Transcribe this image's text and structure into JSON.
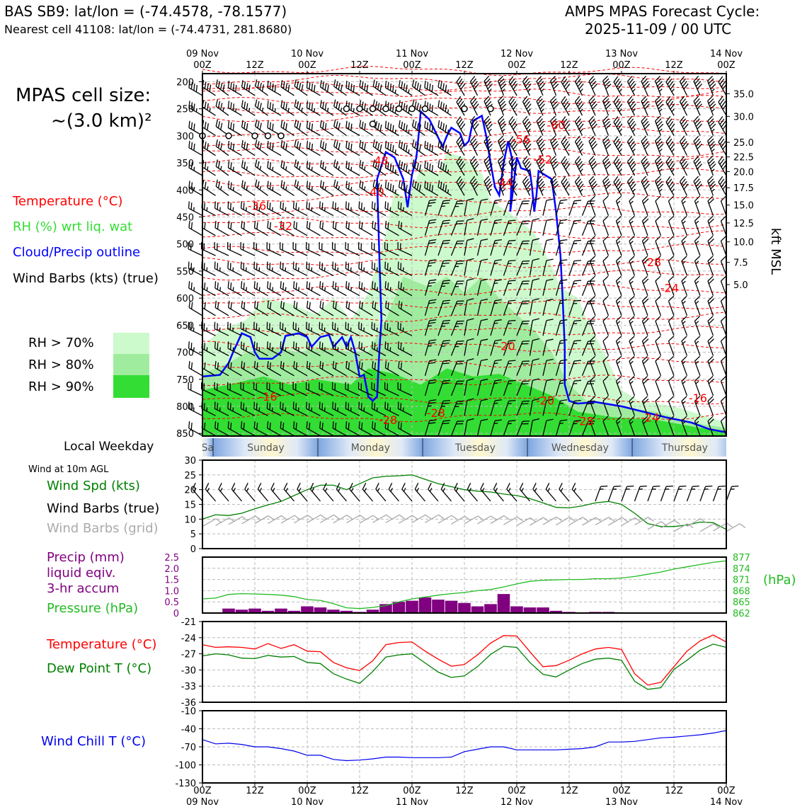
{
  "header": {
    "station": "BAS SB9: lat/lon = (-74.4578, -78.1577)",
    "nearest_cell": "Nearest cell 41108: lat/lon = (-74.4731, 281.8680)",
    "forecast_label": "AMPS MPAS Forecast Cycle:",
    "cycle": "2025-11-09 / 00 UTC"
  },
  "sidebar": {
    "cell_size_label": "MPAS cell size:",
    "cell_size_value": "~(3.0 km)²",
    "legend": {
      "temperature": "Temperature (°C)",
      "rh": "RH (%) wrt liq. wat",
      "cloud": "Cloud/Precip outline",
      "wind": "Wind Barbs (kts) (true)"
    },
    "rh_key": [
      {
        "label": "RH > 70%",
        "color": "#ccfacc"
      },
      {
        "label": "RH > 80%",
        "color": "#9fec9f"
      },
      {
        "label": "RH > 90%",
        "color": "#33dd33"
      }
    ],
    "weekday_label": "Local Weekday",
    "wind10m_label": "Wind at 10m AGL",
    "wind_spd_label": "Wind Spd (kts)",
    "wind_barbs_true": "Wind Barbs (true)",
    "wind_barbs_grid": "Wind Barbs (grid)",
    "precip_label": "Precip (mm)",
    "precip_sub1": "liquid eqiv.",
    "precip_sub2": "3-hr accum",
    "pressure_label": "Pressure (hPa)",
    "pressure_unit": "(hPa)",
    "temp_label": "Temperature (°C)",
    "dew_label": "Dew Point T (°C)",
    "windchill_label": "Wind Chill T (°C)"
  },
  "colors": {
    "temperature": "#ff0000",
    "rh_text": "#33dd33",
    "cloud": "#0000ff",
    "wind_speed": "#008000",
    "grid_barbs": "#aaaaaa",
    "precip": "#800080",
    "pressure": "#22bb22",
    "dewpoint": "#008000",
    "windchill": "#0000ee"
  },
  "time_axis": {
    "ticks": [
      {
        "hour": 0,
        "top": "09 Nov",
        "bottom": "00Z"
      },
      {
        "hour": 12,
        "top": "",
        "bottom": "12Z"
      },
      {
        "hour": 24,
        "top": "10 Nov",
        "bottom": "00Z"
      },
      {
        "hour": 36,
        "top": "",
        "bottom": "12Z"
      },
      {
        "hour": 48,
        "top": "11 Nov",
        "bottom": "00Z"
      },
      {
        "hour": 60,
        "top": "",
        "bottom": "12Z"
      },
      {
        "hour": 72,
        "top": "12 Nov",
        "bottom": "00Z"
      },
      {
        "hour": 84,
        "top": "",
        "bottom": "12Z"
      },
      {
        "hour": 96,
        "top": "13 Nov",
        "bottom": "00Z"
      },
      {
        "hour": 108,
        "top": "",
        "bottom": "12Z"
      },
      {
        "hour": 120,
        "top": "14 Nov",
        "bottom": "00Z"
      }
    ],
    "range": [
      0,
      120
    ]
  },
  "weekdays": [
    {
      "name": "Saturday",
      "start": -6,
      "end": 2.5
    },
    {
      "name": "Sunday",
      "start": 2.5,
      "end": 26.5
    },
    {
      "name": "Monday",
      "start": 26.5,
      "end": 50.5
    },
    {
      "name": "Tuesday",
      "start": 50.5,
      "end": 74.5
    },
    {
      "name": "Wednesday",
      "start": 74.5,
      "end": 98.5
    },
    {
      "name": "Thursday",
      "start": 98.5,
      "end": 122.5
    }
  ],
  "chart_data": [
    {
      "type": "contour",
      "name": "cross-section",
      "y_axis": {
        "label": "",
        "ticks": [
          200,
          250,
          300,
          350,
          400,
          450,
          500,
          550,
          600,
          650,
          700,
          750,
          800,
          850
        ],
        "range": [
          185,
          855
        ]
      },
      "right_axis": {
        "label": "kft MSL",
        "ticks": [
          {
            "label": "35.0",
            "p": 222
          },
          {
            "label": "30.0",
            "p": 264
          },
          {
            "label": "25.0",
            "p": 312
          },
          {
            "label": "22.5",
            "p": 339
          },
          {
            "label": "20.0",
            "p": 366
          },
          {
            "label": "17.5",
            "p": 396
          },
          {
            "label": "15.0",
            "p": 428
          },
          {
            "label": "12.5",
            "p": 461
          },
          {
            "label": "10.0",
            "p": 496
          },
          {
            "label": "7.5",
            "p": 534
          },
          {
            "label": "5.0",
            "p": 575
          }
        ]
      },
      "temperature_labels": [
        {
          "text": "-60",
          "hour": 81,
          "p": 282
        },
        {
          "text": "-56",
          "hour": 73,
          "p": 308
        },
        {
          "text": "-52",
          "hour": 78,
          "p": 345
        },
        {
          "text": "-48",
          "hour": 40.5,
          "p": 347
        },
        {
          "text": "-44",
          "hour": 69,
          "p": 388
        },
        {
          "text": "-40",
          "hour": 39.5,
          "p": 405
        },
        {
          "text": "-36",
          "hour": 12.5,
          "p": 431
        },
        {
          "text": "-32",
          "hour": 18.5,
          "p": 468
        },
        {
          "text": "-28",
          "hour": 103,
          "p": 535
        },
        {
          "text": "-24",
          "hour": 107,
          "p": 583
        },
        {
          "text": "-20",
          "hour": 69.5,
          "p": 690
        },
        {
          "text": "-16",
          "hour": 15,
          "p": 784
        },
        {
          "text": "-28",
          "hour": 42.5,
          "p": 827
        },
        {
          "text": "-28",
          "hour": 53.5,
          "p": 814
        },
        {
          "text": "-20",
          "hour": 78.5,
          "p": 791
        },
        {
          "text": "-28",
          "hour": 87.5,
          "p": 829
        },
        {
          "text": "-24",
          "hour": 102.5,
          "p": 822
        },
        {
          "text": "-16",
          "hour": 113.5,
          "p": 786
        }
      ],
      "cloud_outline_hours": [
        0,
        6,
        7,
        9,
        11,
        12,
        16,
        18,
        20,
        22,
        24,
        25,
        27,
        29,
        30,
        32,
        33,
        35,
        36,
        38,
        39,
        40,
        41,
        42,
        44,
        47,
        49,
        50,
        53,
        56,
        57,
        59,
        61,
        63,
        64,
        66,
        67,
        70,
        72,
        73,
        75,
        77,
        79,
        81,
        84,
        86,
        88,
        90,
        92,
        94,
        96,
        98,
        100,
        102,
        104,
        106,
        108,
        110,
        112,
        114,
        116,
        118,
        120
      ],
      "calm_circles": [
        {
          "hour": 0,
          "p": 300
        },
        {
          "hour": 6,
          "p": 300
        },
        {
          "hour": 12,
          "p": 300
        },
        {
          "hour": 15,
          "p": 300
        },
        {
          "hour": 18,
          "p": 300
        },
        {
          "hour": 33,
          "p": 250
        },
        {
          "hour": 36,
          "p": 250
        },
        {
          "hour": 39,
          "p": 250
        },
        {
          "hour": 42,
          "p": 250
        },
        {
          "hour": 45,
          "p": 250
        },
        {
          "hour": 48,
          "p": 250
        },
        {
          "hour": 51,
          "p": 250
        },
        {
          "hour": 39,
          "p": 278
        },
        {
          "hour": 60,
          "p": 250
        },
        {
          "hour": 66,
          "p": 250
        }
      ]
    },
    {
      "type": "line",
      "name": "10m wind speed",
      "ylim": [
        0,
        30
      ],
      "yticks": [
        0,
        5,
        10,
        15,
        20,
        25,
        30
      ],
      "x": [
        0,
        3,
        6,
        9,
        12,
        15,
        18,
        21,
        24,
        27,
        30,
        33,
        36,
        39,
        42,
        45,
        48,
        51,
        54,
        57,
        60,
        63,
        66,
        69,
        72,
        75,
        78,
        81,
        84,
        87,
        90,
        93,
        96,
        99,
        102,
        105,
        108,
        111,
        114,
        117,
        120
      ],
      "values": [
        10,
        11.5,
        11.2,
        12,
        13.5,
        14.8,
        16,
        18,
        20,
        21.5,
        21.5,
        20,
        22,
        24,
        24.5,
        24.7,
        25,
        23.5,
        22,
        21,
        20,
        19.5,
        19.2,
        18.5,
        18,
        17,
        15.5,
        14,
        13.8,
        14.5,
        15.5,
        16,
        15,
        12,
        8.5,
        7.5,
        7.5,
        8,
        9,
        8.8,
        6.5
      ],
      "barbs_grid_values": [
        8,
        8.3,
        8.7,
        8.9,
        9,
        9,
        9.1,
        9.2,
        9.3,
        9.3,
        9.2,
        9.2,
        9.1,
        9.3,
        9.3,
        9.1,
        9.3,
        9.3,
        9.1,
        8.8,
        8.9,
        8.9,
        9,
        8.6,
        8.3,
        8.4,
        8.6,
        8.5,
        8.5,
        8.4,
        8.5,
        8.4,
        8.3,
        8.5,
        7,
        7.5,
        6.3,
        8,
        6.3,
        6.5,
        6.3
      ]
    },
    {
      "type": "bar+line",
      "name": "precip and pressure",
      "precip_ylim": [
        0,
        2.5
      ],
      "precip_yticks": [
        0,
        0.5,
        1.0,
        1.5,
        2.0,
        2.5
      ],
      "pressure_ylim": [
        862,
        877
      ],
      "pressure_yticks": [
        862,
        865,
        868,
        871,
        874,
        877
      ],
      "precip_x": [
        6,
        9,
        12,
        15,
        18,
        21,
        24,
        27,
        30,
        33,
        36,
        39,
        42,
        45,
        48,
        51,
        54,
        57,
        60,
        63,
        66,
        69,
        72,
        75,
        78,
        81,
        84,
        87,
        90,
        93
      ],
      "precip_values": [
        0.2,
        0.15,
        0.2,
        0.1,
        0.2,
        0.1,
        0.3,
        0.25,
        0.15,
        0.1,
        0.05,
        0.15,
        0.4,
        0.5,
        0.55,
        0.7,
        0.6,
        0.55,
        0.45,
        0.3,
        0.4,
        0.85,
        0.3,
        0.25,
        0.25,
        0.1,
        0.05,
        0.03,
        0.05,
        0.05
      ],
      "pressure_x": [
        0,
        3,
        6,
        9,
        12,
        15,
        18,
        21,
        24,
        27,
        30,
        33,
        36,
        39,
        42,
        45,
        48,
        51,
        54,
        57,
        60,
        63,
        66,
        69,
        72,
        75,
        78,
        81,
        84,
        87,
        90,
        93,
        96,
        99,
        102,
        105,
        108,
        111,
        114,
        117,
        120
      ],
      "pressure_values": [
        865.8,
        866.0,
        867.0,
        867.2,
        867.1,
        867.0,
        866.8,
        866.4,
        865.6,
        865.4,
        864.5,
        863.4,
        863.2,
        863.5,
        864.0,
        865.0,
        865.8,
        866.3,
        866.8,
        867.2,
        867.5,
        868.0,
        868.3,
        869.0,
        869.8,
        870.5,
        870.8,
        870.9,
        871.0,
        871.0,
        871.2,
        871.2,
        871.4,
        871.8,
        872.4,
        873.0,
        873.8,
        874.4,
        875.0,
        875.6,
        876.0
      ]
    },
    {
      "type": "line",
      "name": "temperature and dew point",
      "ylim": [
        -36,
        -21
      ],
      "yticks": [
        -21,
        -24,
        -27,
        -30,
        -33,
        -36
      ],
      "x": [
        0,
        3,
        6,
        9,
        12,
        15,
        18,
        21,
        24,
        27,
        30,
        33,
        36,
        39,
        42,
        45,
        48,
        51,
        54,
        57,
        60,
        63,
        66,
        69,
        72,
        75,
        78,
        81,
        84,
        87,
        90,
        93,
        96,
        99,
        102,
        105,
        108,
        111,
        114,
        117,
        120
      ],
      "series": [
        {
          "name": "Temperature",
          "values": [
            -25.3,
            -25.8,
            -25.7,
            -25.8,
            -26.1,
            -25.1,
            -26.0,
            -25.3,
            -26.5,
            -26.6,
            -28.6,
            -29.6,
            -30.1,
            -28.3,
            -25.3,
            -24.9,
            -24.8,
            -26.5,
            -28.0,
            -29.3,
            -29.0,
            -27.2,
            -25.0,
            -23.6,
            -23.7,
            -26.6,
            -29.4,
            -29.2,
            -28.2,
            -27.0,
            -26.1,
            -25.8,
            -26.2,
            -30.7,
            -32.8,
            -32.3,
            -29.4,
            -26.5,
            -24.6,
            -23.5,
            -24.8
          ]
        },
        {
          "name": "Dew Point",
          "values": [
            -27.4,
            -27.0,
            -27.2,
            -27.8,
            -27.9,
            -27.3,
            -27.6,
            -27.5,
            -28.6,
            -28.8,
            -30.7,
            -31.7,
            -32.5,
            -30.3,
            -27.6,
            -27.2,
            -27.0,
            -28.7,
            -30.4,
            -31.4,
            -31.1,
            -29.4,
            -27.1,
            -25.6,
            -25.8,
            -28.6,
            -30.8,
            -31.3,
            -30.0,
            -28.8,
            -28.0,
            -27.8,
            -28.2,
            -32.1,
            -33.6,
            -33.3,
            -29.9,
            -28.2,
            -26.3,
            -25.2,
            -25.8
          ]
        }
      ]
    },
    {
      "type": "line",
      "name": "wind chill",
      "ylim": [
        -130,
        -10
      ],
      "yticks": [
        -10,
        -40,
        -70,
        -100,
        -130
      ],
      "x": [
        0,
        3,
        6,
        9,
        12,
        15,
        18,
        21,
        24,
        27,
        30,
        33,
        36,
        39,
        42,
        45,
        48,
        51,
        54,
        57,
        60,
        63,
        66,
        69,
        72,
        75,
        78,
        81,
        84,
        87,
        90,
        93,
        96,
        99,
        102,
        105,
        108,
        111,
        114,
        117,
        120
      ],
      "values": [
        -58,
        -65,
        -64,
        -66,
        -70,
        -70,
        -73,
        -77,
        -84,
        -84,
        -91,
        -93,
        -92,
        -90,
        -87,
        -87,
        -88,
        -88,
        -88,
        -87,
        -78,
        -74,
        -70,
        -70,
        -75,
        -75,
        -75,
        -75,
        -74,
        -73,
        -70,
        -62,
        -62,
        -61,
        -58,
        -55,
        -54,
        -52,
        -50,
        -47,
        -43
      ]
    }
  ]
}
